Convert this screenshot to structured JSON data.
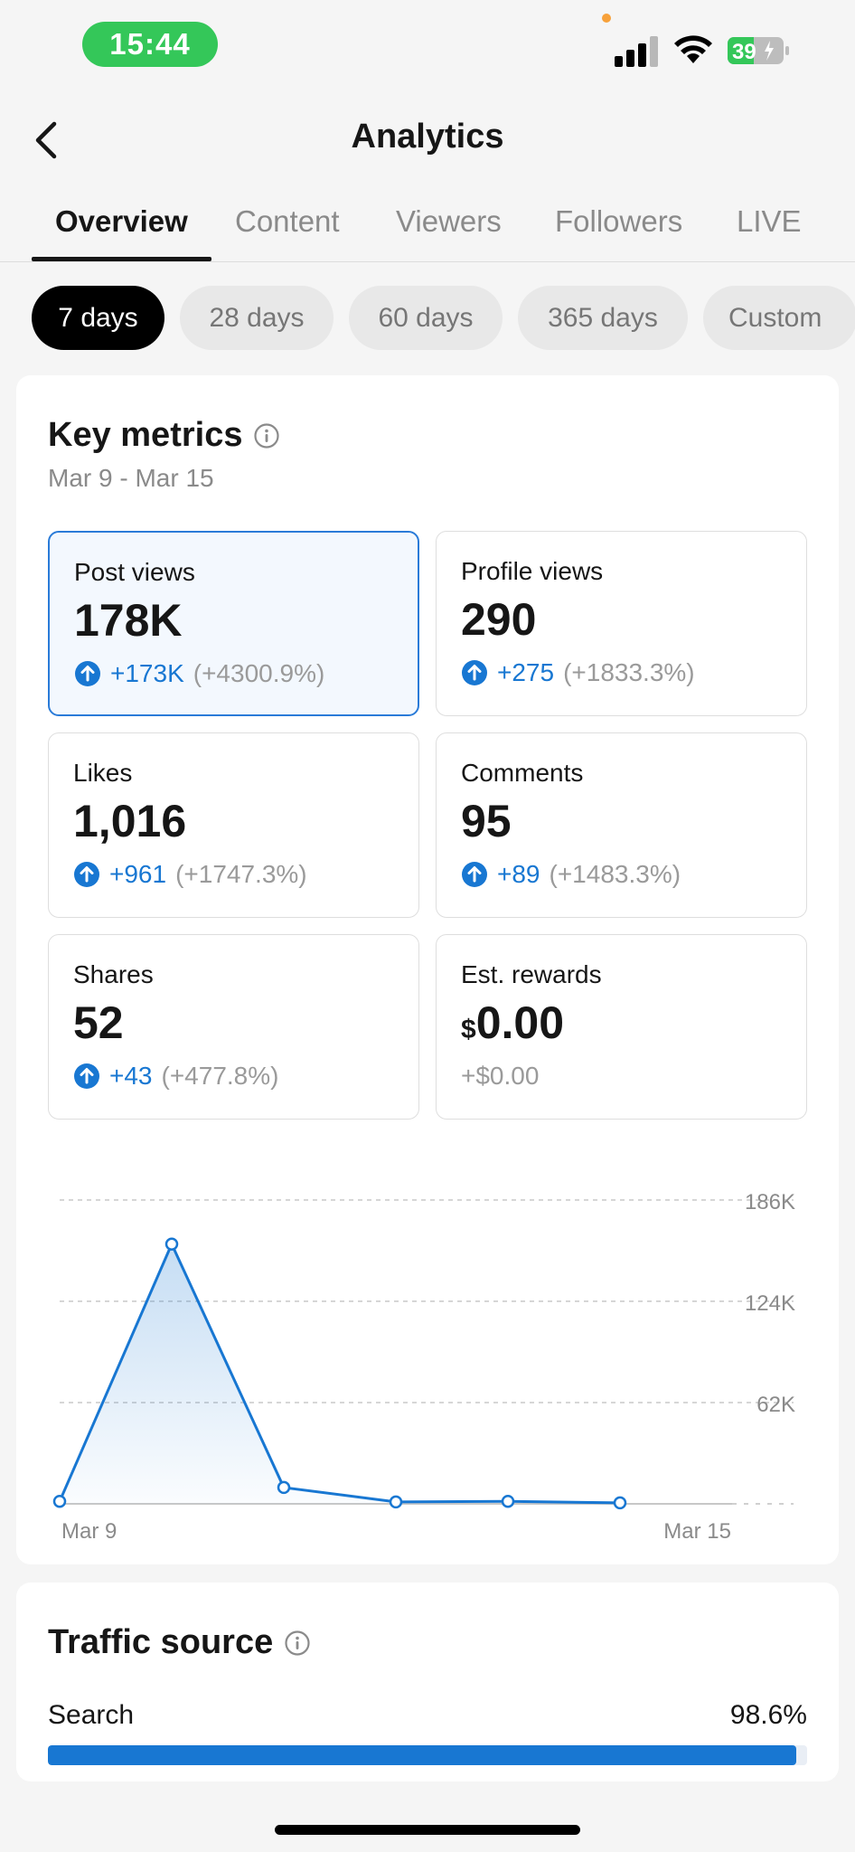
{
  "status_bar": {
    "time": "15:44",
    "battery": "39"
  },
  "header": {
    "title": "Analytics"
  },
  "tabs": [
    {
      "label": "Overview",
      "active": true
    },
    {
      "label": "Content",
      "active": false
    },
    {
      "label": "Viewers",
      "active": false
    },
    {
      "label": "Followers",
      "active": false
    },
    {
      "label": "LIVE",
      "active": false
    }
  ],
  "ranges": [
    {
      "label": "7 days",
      "active": true
    },
    {
      "label": "28 days",
      "active": false
    },
    {
      "label": "60 days",
      "active": false
    },
    {
      "label": "365 days",
      "active": false
    },
    {
      "label": "Custom",
      "active": false
    }
  ],
  "key_metrics": {
    "title": "Key metrics",
    "date_range": "Mar 9 - Mar 15",
    "items": [
      {
        "label": "Post views",
        "value": "178K",
        "delta": "+173K",
        "pct": "(+4300.9%)",
        "selected": true
      },
      {
        "label": "Profile views",
        "value": "290",
        "delta": "+275",
        "pct": "(+1833.3%)"
      },
      {
        "label": "Likes",
        "value": "1,016",
        "delta": "+961",
        "pct": "(+1747.3%)"
      },
      {
        "label": "Comments",
        "value": "95",
        "delta": "+89",
        "pct": "(+1483.3%)"
      },
      {
        "label": "Shares",
        "value": "52",
        "delta": "+43",
        "pct": "(+477.8%)"
      },
      {
        "label": "Est. rewards",
        "currency": "$",
        "value": "0.00",
        "change": "+$0.00"
      }
    ]
  },
  "chart_data": {
    "type": "area",
    "x": [
      "Mar 9",
      "Mar 10",
      "Mar 11",
      "Mar 12",
      "Mar 13",
      "Mar 14",
      "Mar 15"
    ],
    "x_tick_labels": [
      "Mar 9",
      "Mar 15"
    ],
    "series": [
      {
        "values": [
          1500,
          159000,
          10000,
          1200,
          1500,
          600,
          null
        ]
      }
    ],
    "y_ticks": [
      {
        "value": 186000,
        "label": "186K"
      },
      {
        "value": 124000,
        "label": "124K"
      },
      {
        "value": 62000,
        "label": "62K"
      }
    ],
    "ylim": [
      0,
      186000
    ],
    "grid": true,
    "color": "#1877d2"
  },
  "traffic_source": {
    "title": "Traffic source",
    "rows": [
      {
        "label": "Search",
        "value": "98.6%",
        "fraction": 0.986
      }
    ]
  },
  "colors": {
    "accent": "#1877d2",
    "status_green": "#34c759"
  }
}
